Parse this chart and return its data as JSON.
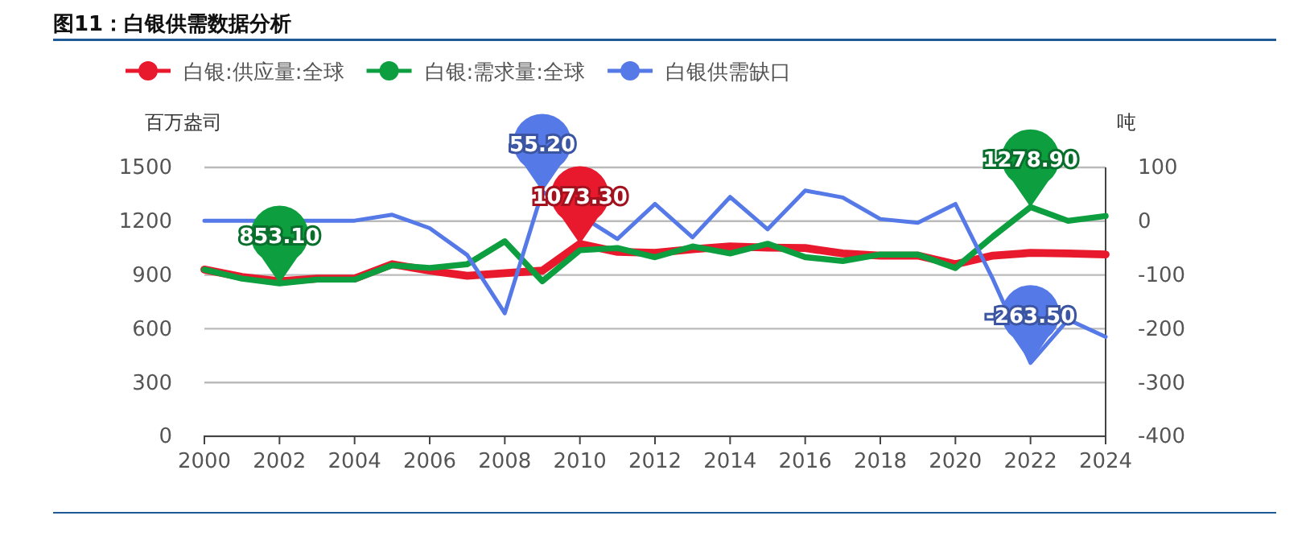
{
  "chart_data": {
    "type": "line",
    "title": "图11：白银供需数据分析",
    "ylabel": "百万盎司",
    "y2label": "吨",
    "x": [
      2000,
      2001,
      2002,
      2003,
      2004,
      2005,
      2006,
      2007,
      2008,
      2009,
      2010,
      2011,
      2012,
      2013,
      2014,
      2015,
      2016,
      2017,
      2018,
      2019,
      2020,
      2021,
      2022,
      2023,
      2024
    ],
    "series": [
      {
        "name": "白银:供应量:全球",
        "color": "#e8192c",
        "values": [
          930,
          889,
          865,
          880,
          880,
          960,
          924,
          895,
          910,
          924,
          1073.3,
          1029,
          1023,
          1044,
          1059,
          1053,
          1050,
          1020,
          1008,
          1008,
          960,
          1008,
          1023,
          1020,
          1014
        ]
      },
      {
        "name": "白银:需求量:全球",
        "color": "#0d9f3f",
        "values": [
          930,
          880,
          853.1,
          874,
          874,
          954,
          939,
          960,
          1088,
          865,
          1038,
          1050,
          999,
          1059,
          1020,
          1074,
          999,
          978,
          1014,
          1014,
          939,
          1115,
          1278.9,
          1202,
          1229
        ]
      },
      {
        "name": "白银供需缺口",
        "color": "#5679e8",
        "axis": "y2",
        "values": [
          1,
          1,
          null,
          1,
          1,
          12,
          -13,
          -63,
          -171,
          55.2,
          null,
          -33,
          32,
          -30,
          45,
          -15,
          57,
          44,
          4,
          -3,
          32,
          -108,
          -263.5,
          -183,
          -215
        ]
      }
    ],
    "annotations": [
      {
        "text": "853.10",
        "x": 2002,
        "y": 853.1
      },
      "55.20",
      {
        "text": "1073.30",
        "x": 2010,
        "y": 1073.3
      },
      {
        "text": "1278.90",
        "x": 2022,
        "y": 1278.9
      },
      "-263.50"
    ],
    "xlim": [
      2000,
      2024
    ],
    "xticks": [
      2000,
      2002,
      2004,
      2006,
      2008,
      2010,
      2012,
      2014,
      2016,
      2018,
      2020,
      2022,
      2024
    ],
    "ylim": [
      0,
      1500
    ],
    "yticks": [
      0,
      300,
      600,
      900,
      1200,
      1500
    ],
    "y2lim": [
      -400,
      100
    ],
    "y2ticks": [
      -400,
      -300,
      -200,
      -100,
      0,
      100
    ],
    "grid": "y",
    "legend": "top left",
    "marker": "none",
    "line_style": "solid"
  }
}
